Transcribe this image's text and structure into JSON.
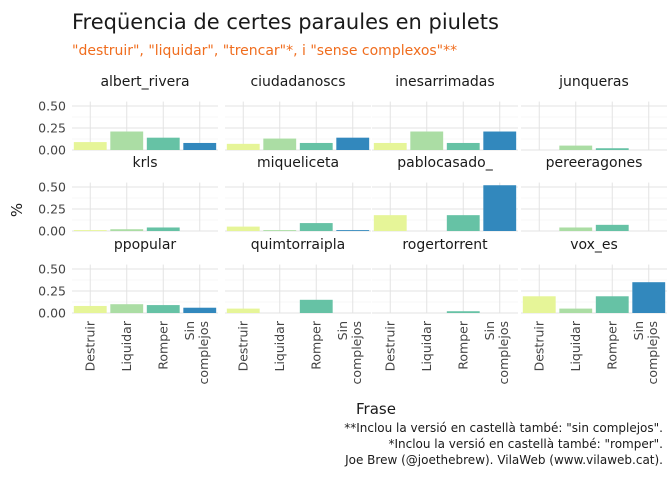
{
  "chart_data": {
    "type": "bar",
    "title": "Freqüencia de certes paraules en piulets",
    "subtitle": "\"destruir\", \"liquidar\", \"trencar\"*, i \"sense complexos\"**",
    "xlabel": "Frase",
    "ylabel": "%",
    "ylim": [
      0,
      0.55
    ],
    "yticks": [
      "0.00",
      "0.25",
      "0.50"
    ],
    "ytick_values": [
      0,
      0.25,
      0.5
    ],
    "categories": [
      "Destruir",
      "Liquidar",
      "Romper",
      "Sin complejos"
    ],
    "category_label_lines": [
      [
        "Destruir"
      ],
      [
        "Liquidar"
      ],
      [
        "Romper"
      ],
      [
        "Sin",
        "complejos"
      ]
    ],
    "grid": true,
    "legend": "none",
    "colors": [
      "#e6f598",
      "#abdda4",
      "#66c2a5",
      "#3288bd"
    ],
    "facets": [
      {
        "name": "albert_rivera",
        "values": [
          0.09,
          0.21,
          0.14,
          0.08
        ]
      },
      {
        "name": "ciudadanoscs",
        "values": [
          0.07,
          0.13,
          0.08,
          0.14
        ]
      },
      {
        "name": "inesarrimadas",
        "values": [
          0.08,
          0.21,
          0.08,
          0.21
        ]
      },
      {
        "name": "junqueras",
        "values": [
          0.0,
          0.05,
          0.02,
          0.0
        ]
      },
      {
        "name": "krls",
        "values": [
          0.01,
          0.02,
          0.04,
          0.0
        ]
      },
      {
        "name": "miqueliceta",
        "values": [
          0.05,
          0.01,
          0.09,
          0.01
        ]
      },
      {
        "name": "pablocasado_",
        "values": [
          0.18,
          0.0,
          0.18,
          0.52
        ]
      },
      {
        "name": "pereeragones",
        "values": [
          0.0,
          0.04,
          0.07,
          0.0
        ]
      },
      {
        "name": "ppopular",
        "values": [
          0.08,
          0.1,
          0.09,
          0.06
        ]
      },
      {
        "name": "quimtorraipla",
        "values": [
          0.05,
          0.0,
          0.15,
          0.0
        ]
      },
      {
        "name": "rogertorrent",
        "values": [
          0.0,
          0.0,
          0.02,
          0.0
        ]
      },
      {
        "name": "vox_es",
        "values": [
          0.19,
          0.05,
          0.19,
          0.35
        ]
      }
    ],
    "caption": [
      "**Inclou la versió en castellà també: \"sin complejos\".",
      "*Inclou la versió en castellà també: \"romper\".",
      "Joe Brew (@joethebrew). VilaWeb (www.vilaweb.cat)."
    ]
  }
}
